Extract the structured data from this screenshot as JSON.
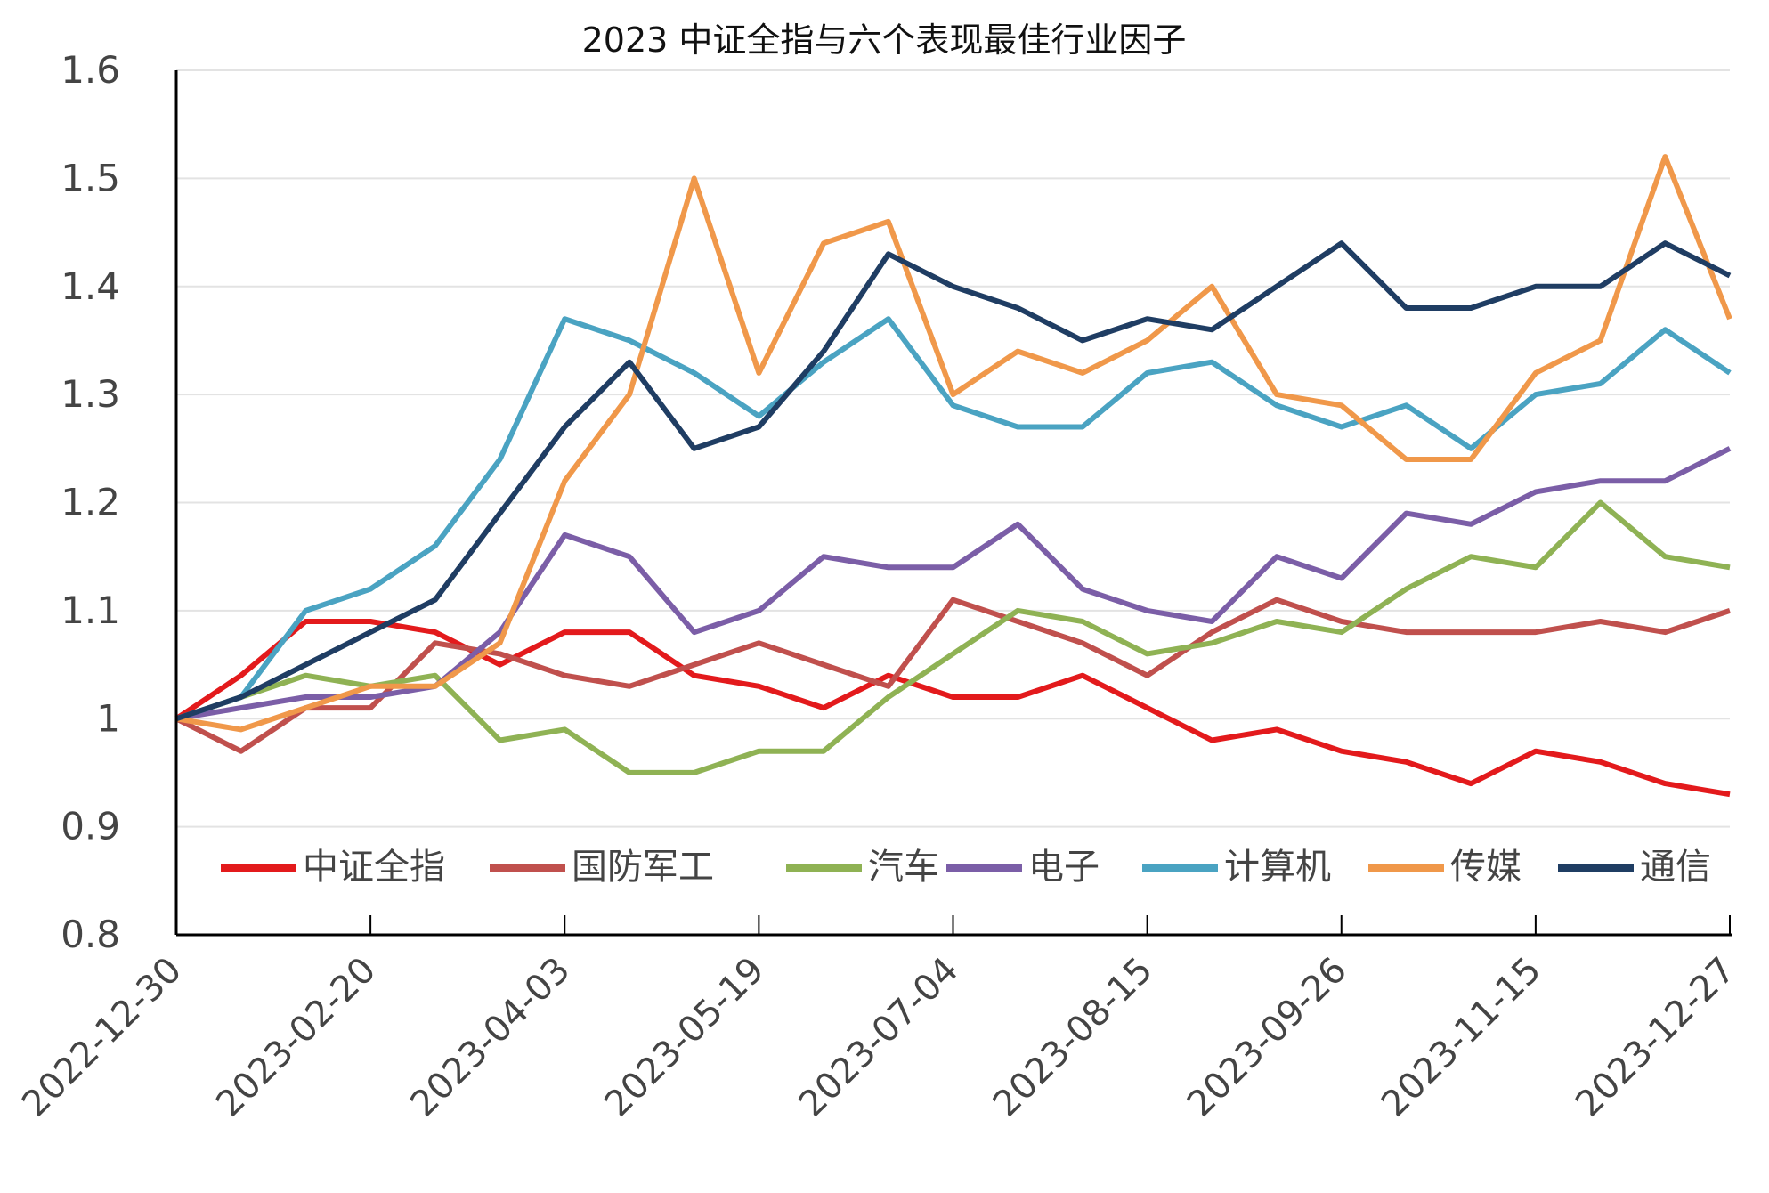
{
  "chart_data": {
    "type": "line",
    "title": "2023 中证全指与六个表现最佳行业因子",
    "xlabel": "",
    "ylabel": "",
    "ylim": [
      0.8,
      1.6
    ],
    "yticks": [
      "0.8",
      "0.9",
      "1",
      "1.1",
      "1.2",
      "1.3",
      "1.4",
      "1.5",
      "1.6"
    ],
    "ytick_values": [
      0.8,
      0.9,
      1.0,
      1.1,
      1.2,
      1.3,
      1.4,
      1.5,
      1.6
    ],
    "xtick_labels": [
      "2022-12-30",
      "2023-02-20",
      "2023-04-03",
      "2023-05-19",
      "2023-07-04",
      "2023-08-15",
      "2023-09-26",
      "2023-11-15",
      "2023-12-27"
    ],
    "xtick_every": 3,
    "grid": true,
    "legend_position": "bottom-inside",
    "series": [
      {
        "name": "中证全指",
        "color": "#e31a1c",
        "values": [
          1.0,
          1.04,
          1.09,
          1.09,
          1.08,
          1.05,
          1.08,
          1.08,
          1.04,
          1.03,
          1.01,
          1.04,
          1.02,
          1.02,
          1.04,
          1.01,
          0.98,
          0.99,
          0.97,
          0.96,
          0.94,
          0.97,
          0.96,
          0.94,
          0.93
        ]
      },
      {
        "name": "国防军工",
        "color": "#c0504d",
        "values": [
          1.0,
          0.97,
          1.01,
          1.01,
          1.07,
          1.06,
          1.04,
          1.03,
          1.05,
          1.07,
          1.05,
          1.03,
          1.11,
          1.09,
          1.07,
          1.04,
          1.08,
          1.11,
          1.09,
          1.08,
          1.08,
          1.08,
          1.09,
          1.08,
          1.1
        ]
      },
      {
        "name": "汽车",
        "color": "#8fb254",
        "values": [
          1.0,
          1.02,
          1.04,
          1.03,
          1.04,
          0.98,
          0.99,
          0.95,
          0.95,
          0.97,
          0.97,
          1.02,
          1.06,
          1.1,
          1.09,
          1.06,
          1.07,
          1.09,
          1.08,
          1.12,
          1.15,
          1.14,
          1.2,
          1.15,
          1.14
        ]
      },
      {
        "name": "电子",
        "color": "#7b5ea7",
        "values": [
          1.0,
          1.01,
          1.02,
          1.02,
          1.03,
          1.08,
          1.17,
          1.15,
          1.08,
          1.1,
          1.15,
          1.14,
          1.14,
          1.18,
          1.12,
          1.1,
          1.09,
          1.15,
          1.13,
          1.19,
          1.18,
          1.21,
          1.22,
          1.22,
          1.25
        ]
      },
      {
        "name": "计算机",
        "color": "#4aa3c2",
        "values": [
          1.0,
          1.02,
          1.1,
          1.12,
          1.16,
          1.24,
          1.37,
          1.35,
          1.32,
          1.28,
          1.33,
          1.37,
          1.29,
          1.27,
          1.27,
          1.32,
          1.33,
          1.29,
          1.27,
          1.29,
          1.25,
          1.3,
          1.31,
          1.36,
          1.32
        ]
      },
      {
        "name": "传媒",
        "color": "#f0984a",
        "values": [
          1.0,
          0.99,
          1.01,
          1.03,
          1.03,
          1.07,
          1.22,
          1.3,
          1.5,
          1.32,
          1.44,
          1.46,
          1.3,
          1.34,
          1.32,
          1.35,
          1.4,
          1.3,
          1.29,
          1.24,
          1.24,
          1.32,
          1.35,
          1.52,
          1.37
        ]
      },
      {
        "name": "通信",
        "color": "#1f3d63",
        "values": [
          1.0,
          1.02,
          1.05,
          1.08,
          1.11,
          1.19,
          1.27,
          1.33,
          1.25,
          1.27,
          1.34,
          1.43,
          1.4,
          1.38,
          1.35,
          1.37,
          1.36,
          1.4,
          1.44,
          1.38,
          1.38,
          1.4,
          1.4,
          1.44,
          1.41
        ]
      }
    ]
  }
}
